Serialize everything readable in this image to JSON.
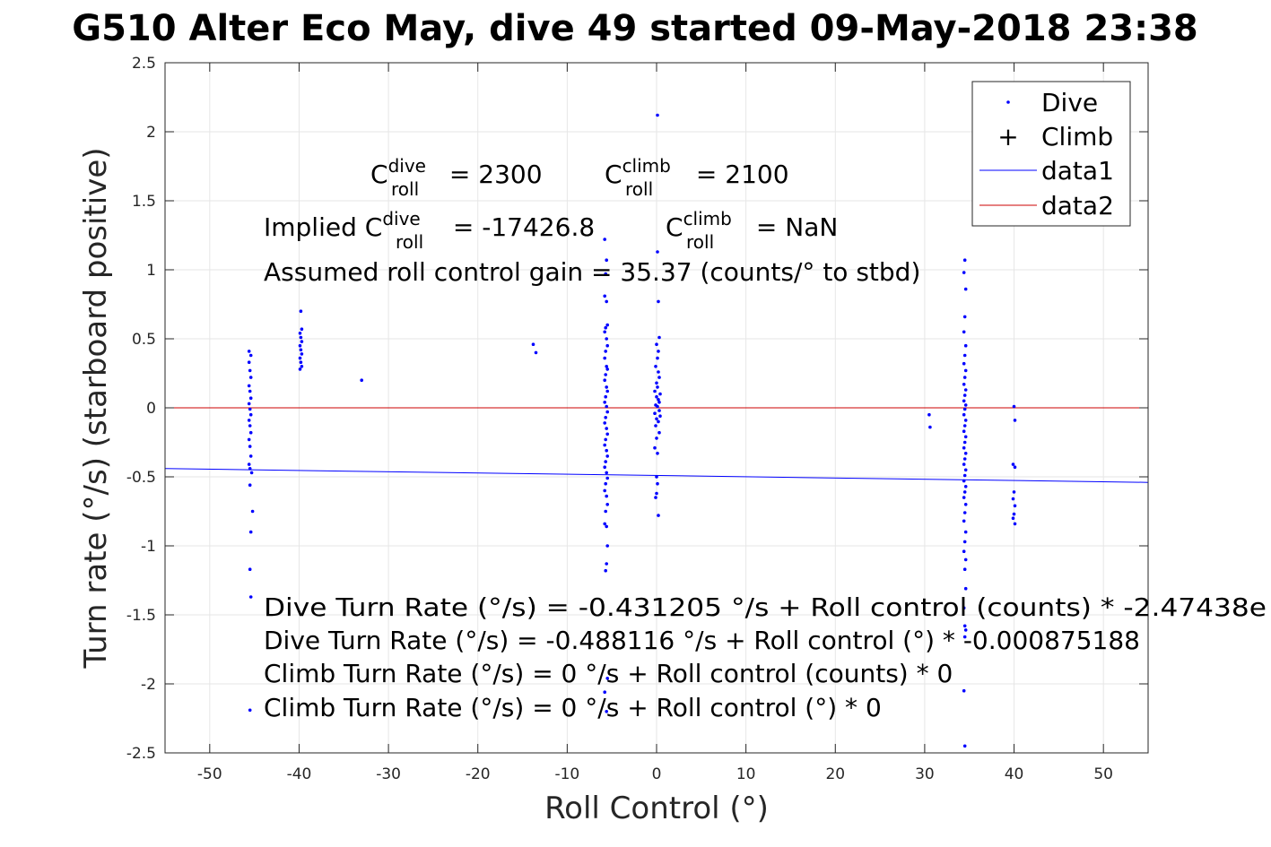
{
  "chart_data": {
    "type": "scatter",
    "title": "G510 Alter Eco May, dive 49 started 09-May-2018 23:38",
    "xlabel": "Roll Control (°)",
    "ylabel": "Turn rate (°/s) (starboard positive)",
    "xlim": [
      -55,
      55
    ],
    "ylim": [
      -2.5,
      2.5
    ],
    "xticks": [
      -50,
      -40,
      -30,
      -20,
      -10,
      0,
      10,
      20,
      30,
      40,
      50
    ],
    "yticks": [
      -2.5,
      -2,
      -1.5,
      -1,
      -0.5,
      0,
      0.5,
      1,
      1.5,
      2,
      2.5
    ],
    "xtick_labels": [
      "-50",
      "-40",
      "-30",
      "-20",
      "-10",
      "0",
      "10",
      "20",
      "30",
      "40",
      "50"
    ],
    "ytick_labels": [
      "-2.5",
      "-2",
      "-1.5",
      "-1",
      "-0.5",
      "0",
      "0.5",
      "1",
      "1.5",
      "2",
      "2.5"
    ],
    "grid": true,
    "legend_position": "top-right",
    "series": [
      {
        "name": "Dive",
        "kind": "points",
        "color": "#0000ff",
        "points": [
          [
            -45.6,
            0.41
          ],
          [
            -45.4,
            0.38
          ],
          [
            -45.6,
            0.33
          ],
          [
            -45.5,
            0.27
          ],
          [
            -45.4,
            0.22
          ],
          [
            -45.6,
            0.16
          ],
          [
            -45.5,
            0.12
          ],
          [
            -45.4,
            0.07
          ],
          [
            -45.6,
            0.03
          ],
          [
            -45.5,
            -0.01
          ],
          [
            -45.4,
            -0.05
          ],
          [
            -45.6,
            -0.09
          ],
          [
            -45.5,
            -0.13
          ],
          [
            -45.4,
            -0.18
          ],
          [
            -45.6,
            -0.23
          ],
          [
            -45.5,
            -0.28
          ],
          [
            -45.4,
            -0.35
          ],
          [
            -45.6,
            -0.41
          ],
          [
            -45.5,
            -0.44
          ],
          [
            -45.3,
            -0.47
          ],
          [
            -45.5,
            -0.56
          ],
          [
            -45.2,
            -0.75
          ],
          [
            -45.4,
            -0.9
          ],
          [
            -45.5,
            -1.17
          ],
          [
            -45.4,
            -1.37
          ],
          [
            -45.5,
            -2.19
          ],
          [
            -39.8,
            0.7
          ],
          [
            -39.7,
            0.57
          ],
          [
            -39.9,
            0.54
          ],
          [
            -39.8,
            0.51
          ],
          [
            -39.7,
            0.48
          ],
          [
            -39.9,
            0.45
          ],
          [
            -39.8,
            0.42
          ],
          [
            -39.7,
            0.39
          ],
          [
            -39.9,
            0.36
          ],
          [
            -39.8,
            0.33
          ],
          [
            -39.7,
            0.3
          ],
          [
            -39.9,
            0.28
          ],
          [
            -33.0,
            0.2
          ],
          [
            -13.8,
            0.46
          ],
          [
            -13.5,
            0.4
          ],
          [
            -5.8,
            1.22
          ],
          [
            -5.6,
            1.07
          ],
          [
            -5.7,
            0.97
          ],
          [
            -5.8,
            0.81
          ],
          [
            -5.6,
            0.77
          ],
          [
            -5.5,
            0.6
          ],
          [
            -5.7,
            0.58
          ],
          [
            -5.8,
            0.55
          ],
          [
            -5.6,
            0.5
          ],
          [
            -5.5,
            0.45
          ],
          [
            -5.7,
            0.41
          ],
          [
            -5.8,
            0.36
          ],
          [
            -5.6,
            0.3
          ],
          [
            -5.5,
            0.28
          ],
          [
            -5.7,
            0.24
          ],
          [
            -5.8,
            0.2
          ],
          [
            -5.6,
            0.15
          ],
          [
            -5.5,
            0.12
          ],
          [
            -5.7,
            0.08
          ],
          [
            -5.8,
            0.04
          ],
          [
            -5.6,
            0.01
          ],
          [
            -5.5,
            -0.03
          ],
          [
            -5.7,
            -0.07
          ],
          [
            -5.8,
            -0.11
          ],
          [
            -5.6,
            -0.15
          ],
          [
            -5.5,
            -0.19
          ],
          [
            -5.7,
            -0.23
          ],
          [
            -5.8,
            -0.27
          ],
          [
            -5.6,
            -0.31
          ],
          [
            -5.5,
            -0.35
          ],
          [
            -5.7,
            -0.39
          ],
          [
            -5.8,
            -0.43
          ],
          [
            -5.6,
            -0.47
          ],
          [
            -5.5,
            -0.51
          ],
          [
            -5.7,
            -0.55
          ],
          [
            -5.8,
            -0.6
          ],
          [
            -5.6,
            -0.64
          ],
          [
            -5.5,
            -0.7
          ],
          [
            -5.7,
            -0.75
          ],
          [
            -5.8,
            -0.84
          ],
          [
            -5.6,
            -0.86
          ],
          [
            -5.5,
            -1.0
          ],
          [
            -5.6,
            -1.13
          ],
          [
            -5.7,
            -1.18
          ],
          [
            -5.5,
            -1.96
          ],
          [
            -5.8,
            -2.06
          ],
          [
            -5.6,
            -2.2
          ],
          [
            0.1,
            2.12
          ],
          [
            0.1,
            1.13
          ],
          [
            0.2,
            0.77
          ],
          [
            0.3,
            0.51
          ],
          [
            0.0,
            0.46
          ],
          [
            0.2,
            0.41
          ],
          [
            0.1,
            0.36
          ],
          [
            -0.1,
            0.3
          ],
          [
            0.2,
            0.26
          ],
          [
            0.3,
            0.22
          ],
          [
            0.0,
            0.18
          ],
          [
            0.1,
            0.15
          ],
          [
            -0.2,
            0.12
          ],
          [
            0.4,
            0.1
          ],
          [
            0.0,
            0.08
          ],
          [
            0.2,
            0.06
          ],
          [
            0.3,
            0.04
          ],
          [
            -0.1,
            0.02
          ],
          [
            0.1,
            0.01
          ],
          [
            0.3,
            -0.02
          ],
          [
            -0.2,
            -0.04
          ],
          [
            0.4,
            -0.06
          ],
          [
            0.0,
            -0.08
          ],
          [
            0.2,
            -0.1
          ],
          [
            -0.1,
            -0.13
          ],
          [
            0.3,
            -0.18
          ],
          [
            0.0,
            -0.22
          ],
          [
            -0.2,
            -0.29
          ],
          [
            0.1,
            -0.33
          ],
          [
            0.0,
            -0.5
          ],
          [
            0.1,
            -0.55
          ],
          [
            0.0,
            -0.62
          ],
          [
            -0.1,
            -0.65
          ],
          [
            0.2,
            -0.78
          ],
          [
            30.5,
            -0.05
          ],
          [
            30.6,
            -0.14
          ],
          [
            34.5,
            1.07
          ],
          [
            34.4,
            0.98
          ],
          [
            34.6,
            0.86
          ],
          [
            34.5,
            0.66
          ],
          [
            34.4,
            0.55
          ],
          [
            34.6,
            0.45
          ],
          [
            34.5,
            0.38
          ],
          [
            34.4,
            0.32
          ],
          [
            34.6,
            0.27
          ],
          [
            34.5,
            0.22
          ],
          [
            34.4,
            0.17
          ],
          [
            34.6,
            0.13
          ],
          [
            34.5,
            0.09
          ],
          [
            34.4,
            0.05
          ],
          [
            34.6,
            0.02
          ],
          [
            34.5,
            -0.01
          ],
          [
            34.4,
            -0.05
          ],
          [
            34.6,
            -0.09
          ],
          [
            34.5,
            -0.13
          ],
          [
            34.4,
            -0.17
          ],
          [
            34.6,
            -0.21
          ],
          [
            34.5,
            -0.25
          ],
          [
            34.4,
            -0.29
          ],
          [
            34.6,
            -0.33
          ],
          [
            34.5,
            -0.37
          ],
          [
            34.4,
            -0.41
          ],
          [
            34.6,
            -0.45
          ],
          [
            34.5,
            -0.49
          ],
          [
            34.4,
            -0.53
          ],
          [
            34.6,
            -0.57
          ],
          [
            34.5,
            -0.61
          ],
          [
            34.4,
            -0.65
          ],
          [
            34.6,
            -0.7
          ],
          [
            34.5,
            -0.76
          ],
          [
            34.4,
            -0.82
          ],
          [
            34.6,
            -0.9
          ],
          [
            34.5,
            -0.97
          ],
          [
            34.4,
            -1.04
          ],
          [
            34.6,
            -1.1
          ],
          [
            34.5,
            -1.17
          ],
          [
            34.6,
            -1.31
          ],
          [
            34.4,
            -1.45
          ],
          [
            34.5,
            -1.58
          ],
          [
            34.6,
            -1.61
          ],
          [
            34.5,
            -1.66
          ],
          [
            34.4,
            -2.05
          ],
          [
            34.5,
            -2.45
          ],
          [
            40.0,
            0.01
          ],
          [
            40.1,
            -0.09
          ],
          [
            39.9,
            -0.41
          ],
          [
            40.1,
            -0.43
          ],
          [
            40.0,
            -0.61
          ],
          [
            39.9,
            -0.66
          ],
          [
            40.1,
            -0.71
          ],
          [
            40.0,
            -0.77
          ],
          [
            39.9,
            -0.8
          ],
          [
            40.1,
            -0.84
          ]
        ]
      },
      {
        "name": "Climb",
        "kind": "plus",
        "color": "#000000",
        "points": []
      },
      {
        "name": "data1",
        "kind": "line",
        "color": "#0000ff",
        "points": [
          [
            -55,
            -0.44
          ],
          [
            55,
            -0.54
          ]
        ]
      },
      {
        "name": "data2",
        "kind": "line",
        "color": "#cc0000",
        "points": [
          [
            -55,
            0
          ],
          [
            55,
            0
          ]
        ]
      }
    ],
    "annotations": {
      "c_roll_dive": {
        "base": "C",
        "sup": "dive",
        "sub": "roll",
        "rest": " = 2300"
      },
      "c_roll_climb": {
        "base": "C",
        "sup": "climb",
        "sub": "roll",
        "rest": " = 2100"
      },
      "implied_dive": {
        "prefix": "Implied C",
        "sup": "dive",
        "sub": "roll",
        "rest": " = -17426.8"
      },
      "implied_climb": {
        "base": "C",
        "sup": "climb",
        "sub": "roll",
        "rest": " = NaN"
      },
      "gain": "Assumed roll control gain = 35.37 (counts/° to stbd)",
      "fit_lines": [
        "Dive Turn Rate (°/s) = -0.431205 °/s + Roll control (counts) * -2.47438e",
        "Dive Turn Rate (°/s) = -0.488116 °/s + Roll control (°) * -0.000875188",
        "Climb Turn Rate (°/s) = 0 °/s + Roll control (counts) * 0",
        "Climb Turn Rate (°/s) = 0 °/s + Roll control (°) * 0"
      ]
    }
  }
}
